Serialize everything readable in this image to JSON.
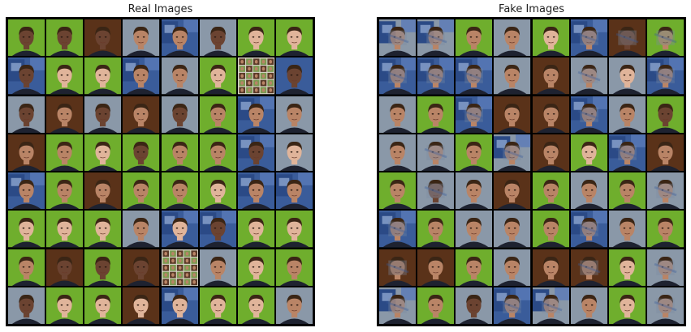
{
  "panels": {
    "real": {
      "title": "Real Images",
      "tiles": [
        [
          "green",
          "portrait",
          "dark",
          "face"
        ],
        [
          "green",
          "dark",
          "dark",
          "face"
        ],
        [
          "brown",
          "portrait",
          "dark",
          "face"
        ],
        [
          "slate",
          "portrait",
          "mid",
          "face"
        ],
        [
          "blue",
          "poster",
          "mid",
          "face"
        ],
        [
          "slate",
          "portrait",
          "dark",
          "face"
        ],
        [
          "green",
          "portrait",
          "light",
          "face"
        ],
        [
          "green",
          "portrait",
          "light",
          "face"
        ],
        [
          "blue",
          "poster",
          "dark",
          "face"
        ],
        [
          "green",
          "portrait",
          "light",
          "face"
        ],
        [
          "green",
          "portrait",
          "light",
          "face"
        ],
        [
          "blue",
          "poster",
          "mid",
          "face"
        ],
        [
          "slate",
          "portrait",
          "mid",
          "face"
        ],
        [
          "green",
          "portrait",
          "light",
          "face"
        ],
        [
          "mosaic",
          "mosaic",
          "mid",
          "mosaic"
        ],
        [
          "blue",
          "portrait",
          "dark",
          "face"
        ],
        [
          "slate",
          "portrait",
          "dark",
          "face"
        ],
        [
          "brown",
          "portrait",
          "mid",
          "face"
        ],
        [
          "slate",
          "portrait",
          "dark",
          "face"
        ],
        [
          "brown",
          "portrait",
          "mid",
          "face"
        ],
        [
          "slate",
          "portrait",
          "dark",
          "face"
        ],
        [
          "green",
          "portrait",
          "mid",
          "face"
        ],
        [
          "blue",
          "poster",
          "mid",
          "face"
        ],
        [
          "slate",
          "portrait",
          "mid",
          "face"
        ],
        [
          "brown",
          "portrait",
          "mid",
          "face"
        ],
        [
          "green",
          "portrait",
          "mid",
          "face"
        ],
        [
          "green",
          "portrait",
          "light",
          "face"
        ],
        [
          "green",
          "portrait",
          "dark",
          "face"
        ],
        [
          "green",
          "portrait",
          "mid",
          "face"
        ],
        [
          "green",
          "portrait",
          "mid",
          "face"
        ],
        [
          "blue",
          "poster",
          "dark",
          "face"
        ],
        [
          "slate",
          "portrait",
          "light",
          "face"
        ],
        [
          "blue",
          "poster",
          "mid",
          "face"
        ],
        [
          "green",
          "portrait",
          "mid",
          "face"
        ],
        [
          "brown",
          "portrait",
          "mid",
          "face"
        ],
        [
          "green",
          "portrait",
          "mid",
          "face"
        ],
        [
          "green",
          "portrait",
          "mid",
          "face"
        ],
        [
          "green",
          "portrait",
          "light",
          "face"
        ],
        [
          "blue",
          "poster",
          "mid",
          "face"
        ],
        [
          "blue",
          "poster",
          "mid",
          "face"
        ],
        [
          "green",
          "portrait",
          "light",
          "face"
        ],
        [
          "green",
          "portrait",
          "light",
          "face"
        ],
        [
          "green",
          "portrait",
          "light",
          "face"
        ],
        [
          "slate",
          "portrait",
          "mid",
          "face"
        ],
        [
          "blue",
          "poster",
          "light",
          "face"
        ],
        [
          "blue",
          "poster",
          "dark",
          "face"
        ],
        [
          "green",
          "portrait",
          "light",
          "face"
        ],
        [
          "green",
          "portrait",
          "light",
          "face"
        ],
        [
          "green",
          "portrait",
          "mid",
          "face"
        ],
        [
          "brown",
          "portrait",
          "dark",
          "face"
        ],
        [
          "green",
          "portrait",
          "dark",
          "face"
        ],
        [
          "brown",
          "portrait",
          "dark",
          "face"
        ],
        [
          "mosaic",
          "mosaic",
          "mid",
          "mosaic"
        ],
        [
          "slate",
          "portrait",
          "mid",
          "face"
        ],
        [
          "green",
          "portrait",
          "light",
          "face"
        ],
        [
          "green",
          "portrait",
          "mid",
          "face"
        ],
        [
          "slate",
          "portrait",
          "dark",
          "face"
        ],
        [
          "green",
          "portrait",
          "light",
          "face"
        ],
        [
          "green",
          "portrait",
          "light",
          "face"
        ],
        [
          "brown",
          "portrait",
          "light",
          "face"
        ],
        [
          "blue",
          "poster",
          "light",
          "face"
        ],
        [
          "green",
          "portrait",
          "light",
          "face"
        ],
        [
          "green",
          "portrait",
          "light",
          "face"
        ],
        [
          "slate",
          "portrait",
          "mid",
          "face"
        ]
      ]
    },
    "fake": {
      "title": "Fake Images",
      "tiles": [
        [
          "slate",
          "poster",
          "mid",
          "blur"
        ],
        [
          "slate",
          "poster",
          "mid",
          "blur"
        ],
        [
          "green",
          "portrait",
          "mid",
          "face"
        ],
        [
          "slate",
          "portrait",
          "mid",
          "face"
        ],
        [
          "green",
          "portrait",
          "light",
          "face"
        ],
        [
          "blue",
          "poster",
          "mid",
          "blur"
        ],
        [
          "brown",
          "portrait",
          "dark",
          "blur"
        ],
        [
          "green",
          "portrait",
          "mid",
          "blur"
        ],
        [
          "blue",
          "poster",
          "mid",
          "blur"
        ],
        [
          "blue",
          "poster",
          "mid",
          "blur"
        ],
        [
          "blue",
          "poster",
          "mid",
          "blur"
        ],
        [
          "slate",
          "portrait",
          "mid",
          "face"
        ],
        [
          "brown",
          "portrait",
          "mid",
          "face"
        ],
        [
          "slate",
          "portrait",
          "mid",
          "blur"
        ],
        [
          "slate",
          "portrait",
          "light",
          "face"
        ],
        [
          "blue",
          "poster",
          "mid",
          "blur"
        ],
        [
          "slate",
          "portrait",
          "mid",
          "face"
        ],
        [
          "green",
          "portrait",
          "mid",
          "face"
        ],
        [
          "blue",
          "poster",
          "mid",
          "blur"
        ],
        [
          "brown",
          "portrait",
          "mid",
          "face"
        ],
        [
          "brown",
          "portrait",
          "mid",
          "face"
        ],
        [
          "blue",
          "poster",
          "mid",
          "blur"
        ],
        [
          "slate",
          "portrait",
          "mid",
          "face"
        ],
        [
          "green",
          "portrait",
          "dark",
          "face"
        ],
        [
          "slate",
          "portrait",
          "mid",
          "face"
        ],
        [
          "slate",
          "portrait",
          "mid",
          "blur"
        ],
        [
          "green",
          "portrait",
          "mid",
          "face"
        ],
        [
          "slate",
          "poster",
          "mid",
          "blur"
        ],
        [
          "brown",
          "portrait",
          "mid",
          "face"
        ],
        [
          "green",
          "portrait",
          "light",
          "face"
        ],
        [
          "blue",
          "poster",
          "mid",
          "blur"
        ],
        [
          "brown",
          "portrait",
          "mid",
          "face"
        ],
        [
          "green",
          "portrait",
          "mid",
          "face"
        ],
        [
          "slate",
          "portrait",
          "dark",
          "blur"
        ],
        [
          "slate",
          "portrait",
          "mid",
          "face"
        ],
        [
          "brown",
          "portrait",
          "mid",
          "face"
        ],
        [
          "green",
          "portrait",
          "mid",
          "face"
        ],
        [
          "slate",
          "portrait",
          "mid",
          "face"
        ],
        [
          "green",
          "portrait",
          "mid",
          "face"
        ],
        [
          "slate",
          "portrait",
          "mid",
          "blur"
        ],
        [
          "blue",
          "poster",
          "mid",
          "blur"
        ],
        [
          "green",
          "portrait",
          "mid",
          "face"
        ],
        [
          "slate",
          "portrait",
          "mid",
          "face"
        ],
        [
          "slate",
          "portrait",
          "mid",
          "face"
        ],
        [
          "green",
          "portrait",
          "mid",
          "face"
        ],
        [
          "blue",
          "poster",
          "mid",
          "blur"
        ],
        [
          "slate",
          "portrait",
          "mid",
          "face"
        ],
        [
          "green",
          "portrait",
          "mid",
          "face"
        ],
        [
          "brown",
          "portrait",
          "mid",
          "blur"
        ],
        [
          "brown",
          "portrait",
          "mid",
          "face"
        ],
        [
          "green",
          "portrait",
          "mid",
          "face"
        ],
        [
          "slate",
          "portrait",
          "mid",
          "face"
        ],
        [
          "brown",
          "portrait",
          "mid",
          "face"
        ],
        [
          "brown",
          "portrait",
          "mid",
          "blur"
        ],
        [
          "green",
          "portrait",
          "light",
          "face"
        ],
        [
          "slate",
          "portrait",
          "mid",
          "blur"
        ],
        [
          "slate",
          "poster",
          "mid",
          "blur"
        ],
        [
          "green",
          "portrait",
          "mid",
          "face"
        ],
        [
          "slate",
          "portrait",
          "dark",
          "face"
        ],
        [
          "blue",
          "poster",
          "mid",
          "blur"
        ],
        [
          "slate",
          "poster",
          "mid",
          "blur"
        ],
        [
          "slate",
          "portrait",
          "mid",
          "face"
        ],
        [
          "green",
          "portrait",
          "light",
          "face"
        ],
        [
          "slate",
          "portrait",
          "mid",
          "blur"
        ]
      ]
    }
  },
  "colors": {
    "green": "#6fae2d",
    "brown": "#5a3219",
    "slate": "#8a98a8",
    "blue": "#3a5c9a",
    "skin_light": "#e0b49a",
    "skin_mid": "#b98466",
    "skin_dark": "#6b4331",
    "hair": "#3a2515",
    "shirt": "#1e2230"
  }
}
